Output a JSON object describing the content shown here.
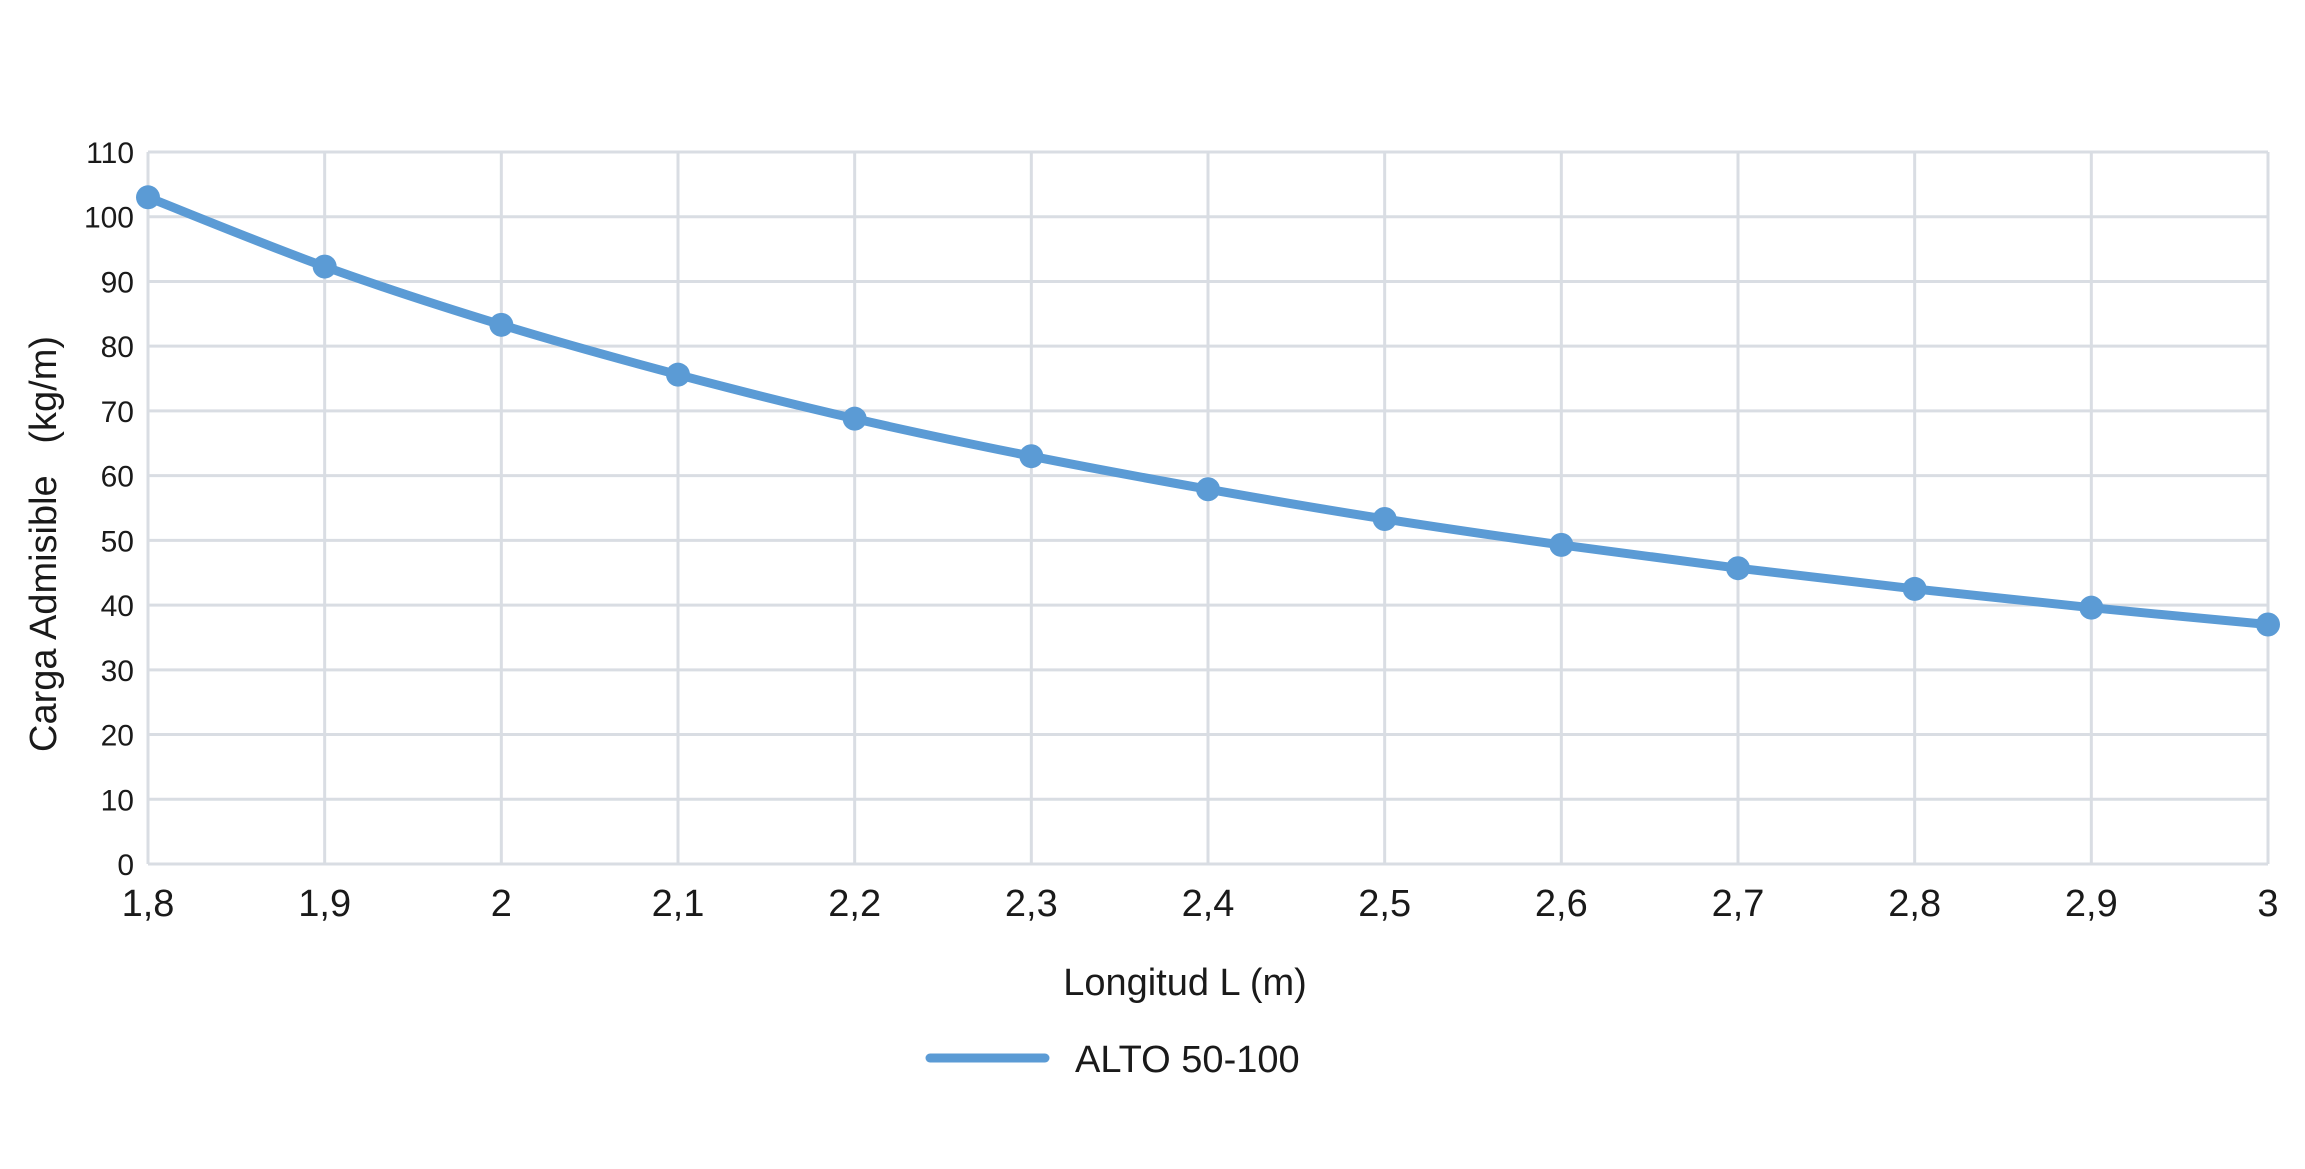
{
  "chart_data": {
    "type": "line",
    "x": [
      "1,8",
      "1,9",
      "2",
      "2,1",
      "2,2",
      "2,3",
      "2,4",
      "2,5",
      "2,6",
      "2,7",
      "2,8",
      "2,9",
      "3"
    ],
    "x_values": [
      1.8,
      1.9,
      2.0,
      2.1,
      2.2,
      2.3,
      2.4,
      2.5,
      2.6,
      2.7,
      2.8,
      2.9,
      3.0
    ],
    "series": [
      {
        "name": "ALTO 50-100",
        "color": "#5b9bd5",
        "values": [
          103,
          92.3,
          83.3,
          75.6,
          68.8,
          63.0,
          57.9,
          53.3,
          49.3,
          45.7,
          42.5,
          39.6,
          37.0
        ]
      }
    ],
    "xlabel": "Longitud L (m)",
    "ylabel": "Carga Admisible   (kg/m)",
    "xlim": [
      1.8,
      3.0
    ],
    "ylim": [
      0,
      110
    ],
    "y_ticks": [
      0,
      10,
      20,
      30,
      40,
      50,
      60,
      70,
      80,
      90,
      100,
      110
    ],
    "grid": true,
    "legend_position": "bottom-center",
    "colors": {
      "grid": "#d9dde3",
      "text": "#1a1a1a"
    }
  }
}
